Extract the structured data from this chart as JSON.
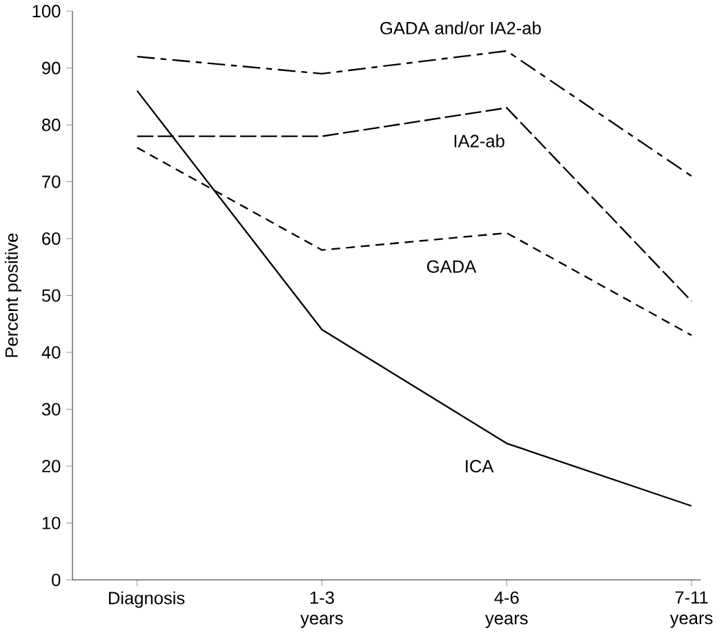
{
  "chart_data": {
    "type": "line",
    "ylabel": "Percent positive",
    "categories": [
      "Diagnosis",
      "1-3 years",
      "4-6 years",
      "7-11 years"
    ],
    "series": [
      {
        "name": "ICA",
        "color": "#000000",
        "line_style": "solid",
        "values": [
          86,
          44,
          24,
          13
        ]
      },
      {
        "name": "GADA",
        "color": "#000000",
        "line_style": "dashed",
        "values": [
          76,
          58,
          61,
          43
        ]
      },
      {
        "name": "IA2-ab",
        "color": "#000000",
        "line_style": "dashed",
        "values": [
          78,
          78,
          83,
          49
        ]
      },
      {
        "name": "GADA and/or IA2-ab",
        "color": "#000000",
        "line_style": "dashed",
        "values": [
          92,
          89,
          93,
          71
        ]
      }
    ],
    "ylim": [
      0,
      100
    ],
    "yticks": [
      0,
      10,
      20,
      30,
      40,
      50,
      60,
      70,
      80,
      90,
      100
    ],
    "grid": false,
    "legend": false,
    "marker": "none"
  }
}
